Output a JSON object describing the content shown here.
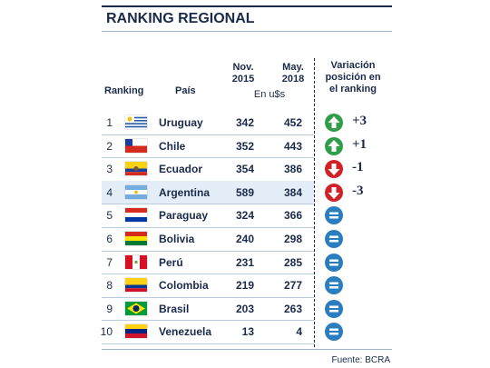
{
  "header": {
    "title": "RANKING REGIONAL"
  },
  "table": {
    "columns": {
      "rank": "Ranking",
      "country": "País",
      "nov2015": [
        "Nov.",
        "2015"
      ],
      "may2018": [
        "May.",
        "2018"
      ],
      "unit": "En u$s",
      "variation": [
        "Variación",
        "posición en",
        "el ranking"
      ]
    },
    "rows": [
      {
        "rank": 1,
        "country": "Uruguay",
        "nov2015": 342,
        "may2018": 452,
        "variation": "+3"
      },
      {
        "rank": 2,
        "country": "Chile",
        "nov2015": 352,
        "may2018": 443,
        "variation": "+1"
      },
      {
        "rank": 3,
        "country": "Ecuador",
        "nov2015": 354,
        "may2018": 386,
        "variation": "-1"
      },
      {
        "rank": 4,
        "country": "Argentina",
        "nov2015": 589,
        "may2018": 384,
        "variation": "-3"
      },
      {
        "rank": 5,
        "country": "Paraguay",
        "nov2015": 324,
        "may2018": 366
      },
      {
        "rank": 6,
        "country": "Bolivia",
        "nov2015": 240,
        "may2018": 298
      },
      {
        "rank": 7,
        "country": "Perú",
        "nov2015": 231,
        "may2018": 285
      },
      {
        "rank": 8,
        "country": "Colombia",
        "nov2015": 219,
        "may2018": 277
      },
      {
        "rank": 9,
        "country": "Brasil",
        "nov2015": 203,
        "may2018": 263
      },
      {
        "rank": 10,
        "country": "Venezuela",
        "nov2015": 13,
        "may2018": 4
      }
    ]
  },
  "footer": {
    "source": "Fuente: BCRA"
  }
}
